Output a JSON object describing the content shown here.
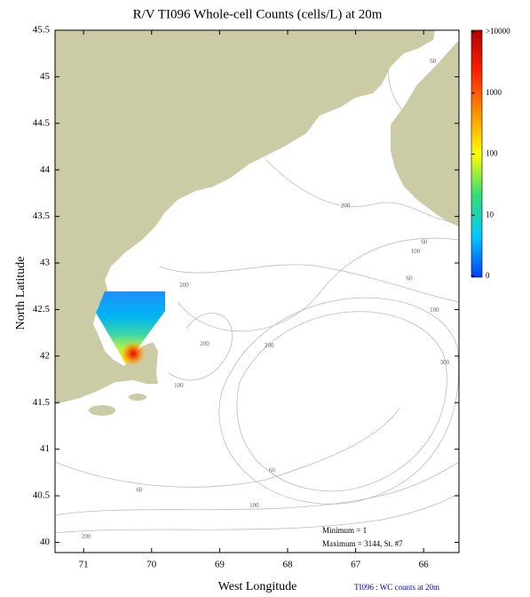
{
  "chart_data": {
    "type": "map",
    "title": "R/V TI096 Whole-cell Counts (cells/L) at 20m",
    "xlabel": "West Longitude",
    "ylabel": "North Latitude",
    "xlim": [
      71.42,
      65.48
    ],
    "xticks": [
      71,
      70,
      69,
      68,
      67,
      66
    ],
    "ylim": [
      39.89,
      45.5
    ],
    "yticks": [
      40,
      40.5,
      41,
      41.5,
      42,
      42.5,
      43,
      43.5,
      44,
      44.5,
      45,
      45.5
    ],
    "land_color": "#cbcba6",
    "colorbar": {
      "labels": [
        ">10000",
        "1000",
        "100",
        "10",
        "0"
      ],
      "colors": [
        "#b00000",
        "#ff2000",
        "#ff9000",
        "#ffff00",
        "#30e070",
        "#00c8ff",
        "#0040ff"
      ]
    },
    "annotations": [
      "Minimum = 1",
      "Maximum = 3144, St. #7"
    ],
    "footer": "TI096 : WC counts at 20m",
    "contour_labels": [
      {
        "text": "60",
        "lon": 65.86,
        "lat": 45.16
      },
      {
        "text": "200",
        "lon": 67.15,
        "lat": 43.61
      },
      {
        "text": "60",
        "lon": 65.99,
        "lat": 43.22
      },
      {
        "text": "100",
        "lon": 66.12,
        "lat": 43.12
      },
      {
        "text": "60",
        "lon": 66.21,
        "lat": 42.83
      },
      {
        "text": "200",
        "lon": 69.52,
        "lat": 42.76
      },
      {
        "text": "100",
        "lon": 65.84,
        "lat": 42.49
      },
      {
        "text": "200",
        "lon": 69.22,
        "lat": 42.13
      },
      {
        "text": "200",
        "lon": 68.27,
        "lat": 42.11
      },
      {
        "text": "300",
        "lon": 65.69,
        "lat": 41.93
      },
      {
        "text": "100",
        "lon": 69.6,
        "lat": 41.68
      },
      {
        "text": "60",
        "lon": 68.23,
        "lat": 40.77
      },
      {
        "text": "60",
        "lon": 70.18,
        "lat": 40.56
      },
      {
        "text": "100",
        "lon": 68.49,
        "lat": 40.39
      },
      {
        "text": "200",
        "lon": 70.96,
        "lat": 40.06
      }
    ]
  }
}
